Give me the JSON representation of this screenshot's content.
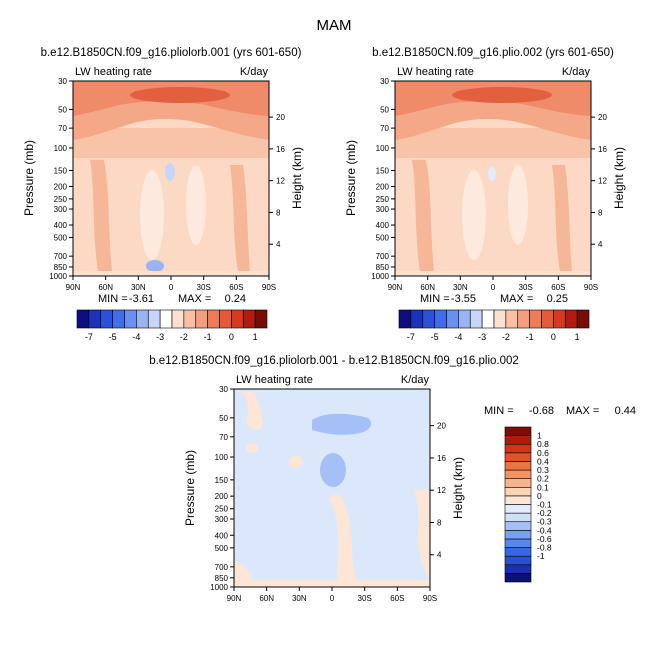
{
  "figure_title": "MAM",
  "chart_data": [
    {
      "type": "heatmap",
      "id": "panel1",
      "title": "b.e12.B1850CN.f09_g16.pliolorb.001 (yrs 601-650)",
      "variable": "LW heating rate",
      "units": "K/day",
      "xlabel": "",
      "ylabel": "Pressure (mb)",
      "y2label": "Height (km)",
      "x_ticks": [
        "90N",
        "60N",
        "30N",
        "0",
        "30S",
        "60S",
        "90S"
      ],
      "y_ticks": [
        "30",
        "50",
        "70",
        "100",
        "150",
        "200",
        "250",
        "300",
        "400",
        "500",
        "700",
        "850",
        "1000"
      ],
      "y_tick_values": [
        30,
        50,
        70,
        100,
        150,
        200,
        250,
        300,
        400,
        500,
        700,
        850,
        1000
      ],
      "height_ticks": [
        "4",
        "8",
        "12",
        "16",
        "20"
      ],
      "height_tick_values": [
        4,
        8,
        12,
        16,
        20
      ],
      "min_label": "MIN =",
      "min_value": "-3.61",
      "max_label": "MAX =",
      "max_value": "0.24",
      "min": -3.61,
      "max": 0.24
    },
    {
      "type": "heatmap",
      "id": "panel2",
      "title": "b.e12.B1850CN.f09_g16.plio.002 (yrs 601-650)",
      "variable": "LW heating rate",
      "units": "K/day",
      "xlabel": "",
      "ylabel": "Pressure (mb)",
      "y2label": "Height (km)",
      "x_ticks": [
        "90N",
        "60N",
        "30N",
        "0",
        "30S",
        "60S",
        "90S"
      ],
      "y_ticks": [
        "30",
        "50",
        "70",
        "100",
        "150",
        "200",
        "250",
        "300",
        "400",
        "500",
        "700",
        "850",
        "1000"
      ],
      "y_tick_values": [
        30,
        50,
        70,
        100,
        150,
        200,
        250,
        300,
        400,
        500,
        700,
        850,
        1000
      ],
      "height_ticks": [
        "4",
        "8",
        "12",
        "16",
        "20"
      ],
      "height_tick_values": [
        4,
        8,
        12,
        16,
        20
      ],
      "min_label": "MIN =",
      "min_value": "-3.55",
      "max_label": "MAX =",
      "max_value": "0.25",
      "min": -3.55,
      "max": 0.25
    },
    {
      "type": "heatmap",
      "id": "panel3",
      "title": "b.e12.B1850CN.f09_g16.pliolorb.001 - b.e12.B1850CN.f09_g16.plio.002",
      "variable": "LW heating rate",
      "units": "K/day",
      "xlabel": "",
      "ylabel": "Pressure (mb)",
      "y2label": "Height (km)",
      "x_ticks": [
        "90N",
        "60N",
        "30N",
        "0",
        "30S",
        "60S",
        "90S"
      ],
      "y_ticks": [
        "30",
        "50",
        "70",
        "100",
        "150",
        "200",
        "250",
        "300",
        "400",
        "500",
        "700",
        "850",
        "1000"
      ],
      "y_tick_values": [
        30,
        50,
        70,
        100,
        150,
        200,
        250,
        300,
        400,
        500,
        700,
        850,
        1000
      ],
      "height_ticks": [
        "4",
        "8",
        "12",
        "16",
        "20"
      ],
      "height_tick_values": [
        4,
        8,
        12,
        16,
        20
      ],
      "min_label": "MIN =",
      "min_value": "-0.68",
      "max_label": "MAX =",
      "max_value": "0.44",
      "min": -0.68,
      "max": 0.44
    }
  ],
  "colorbar_abs": {
    "colors": [
      "#0d0f80",
      "#1a33b8",
      "#2a52d8",
      "#3f6ee8",
      "#6a90ef",
      "#98b4f3",
      "#c5d6fa",
      "#ffffff",
      "#fde0cf",
      "#f9c0a4",
      "#f59e7c",
      "#ef7b58",
      "#e65a3a",
      "#d63b22",
      "#b21c10",
      "#7a0c06"
    ],
    "labels": [
      "-7",
      "-5",
      "-4",
      "-3",
      "-2",
      "-1",
      "0",
      "1"
    ],
    "label_boundary_index": [
      1,
      3,
      5,
      7,
      9,
      11,
      13,
      15
    ]
  },
  "colorbar_diff": {
    "colors": [
      "#0a1273",
      "#1c2fb0",
      "#2a4fd6",
      "#3a66e6",
      "#5a84ee",
      "#7aa0f1",
      "#a4c0f6",
      "#cfe0fb",
      "#e2edfc",
      "#fde6d6",
      "#fbd2b6",
      "#f7b48e",
      "#f29466",
      "#ec7243",
      "#e2522a",
      "#d03518",
      "#ad1e0a",
      "#800c04"
    ],
    "labels": [
      "1",
      "0.8",
      "0.6",
      "0.4",
      "0.3",
      "0.2",
      "0.1",
      "0",
      "-0.1",
      "-0.2",
      "-0.3",
      "-0.4",
      "-0.6",
      "-0.8",
      "-1"
    ]
  }
}
